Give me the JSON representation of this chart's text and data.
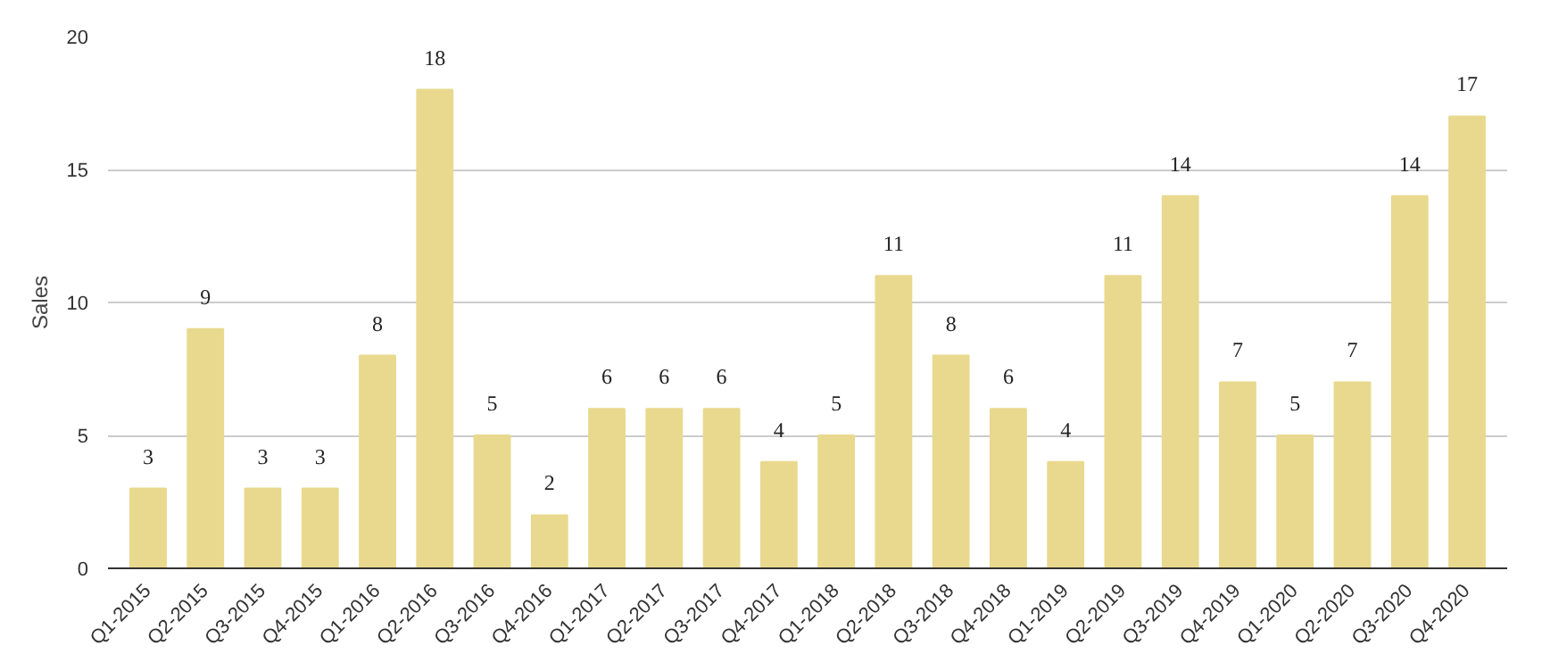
{
  "chart_data": {
    "type": "bar",
    "ylabel": "Sales",
    "categories": [
      "Q1-2015",
      "Q2-2015",
      "Q3-2015",
      "Q4-2015",
      "Q1-2016",
      "Q2-2016",
      "Q3-2016",
      "Q4-2016",
      "Q1-2017",
      "Q2-2017",
      "Q3-2017",
      "Q4-2017",
      "Q1-2018",
      "Q2-2018",
      "Q3-2018",
      "Q4-2018",
      "Q1-2019",
      "Q2-2019",
      "Q3-2019",
      "Q4-2019",
      "Q1-2020",
      "Q2-2020",
      "Q3-2020",
      "Q4-2020"
    ],
    "values": [
      3,
      9,
      3,
      3,
      8,
      18,
      5,
      2,
      6,
      6,
      6,
      4,
      5,
      11,
      8,
      6,
      4,
      11,
      14,
      7,
      5,
      7,
      14,
      17
    ],
    "color": "#e8d98e",
    "ylim": [
      0,
      20
    ],
    "yticks": [
      0,
      5,
      10,
      15,
      20
    ],
    "grid": "y",
    "data_labels": true
  }
}
